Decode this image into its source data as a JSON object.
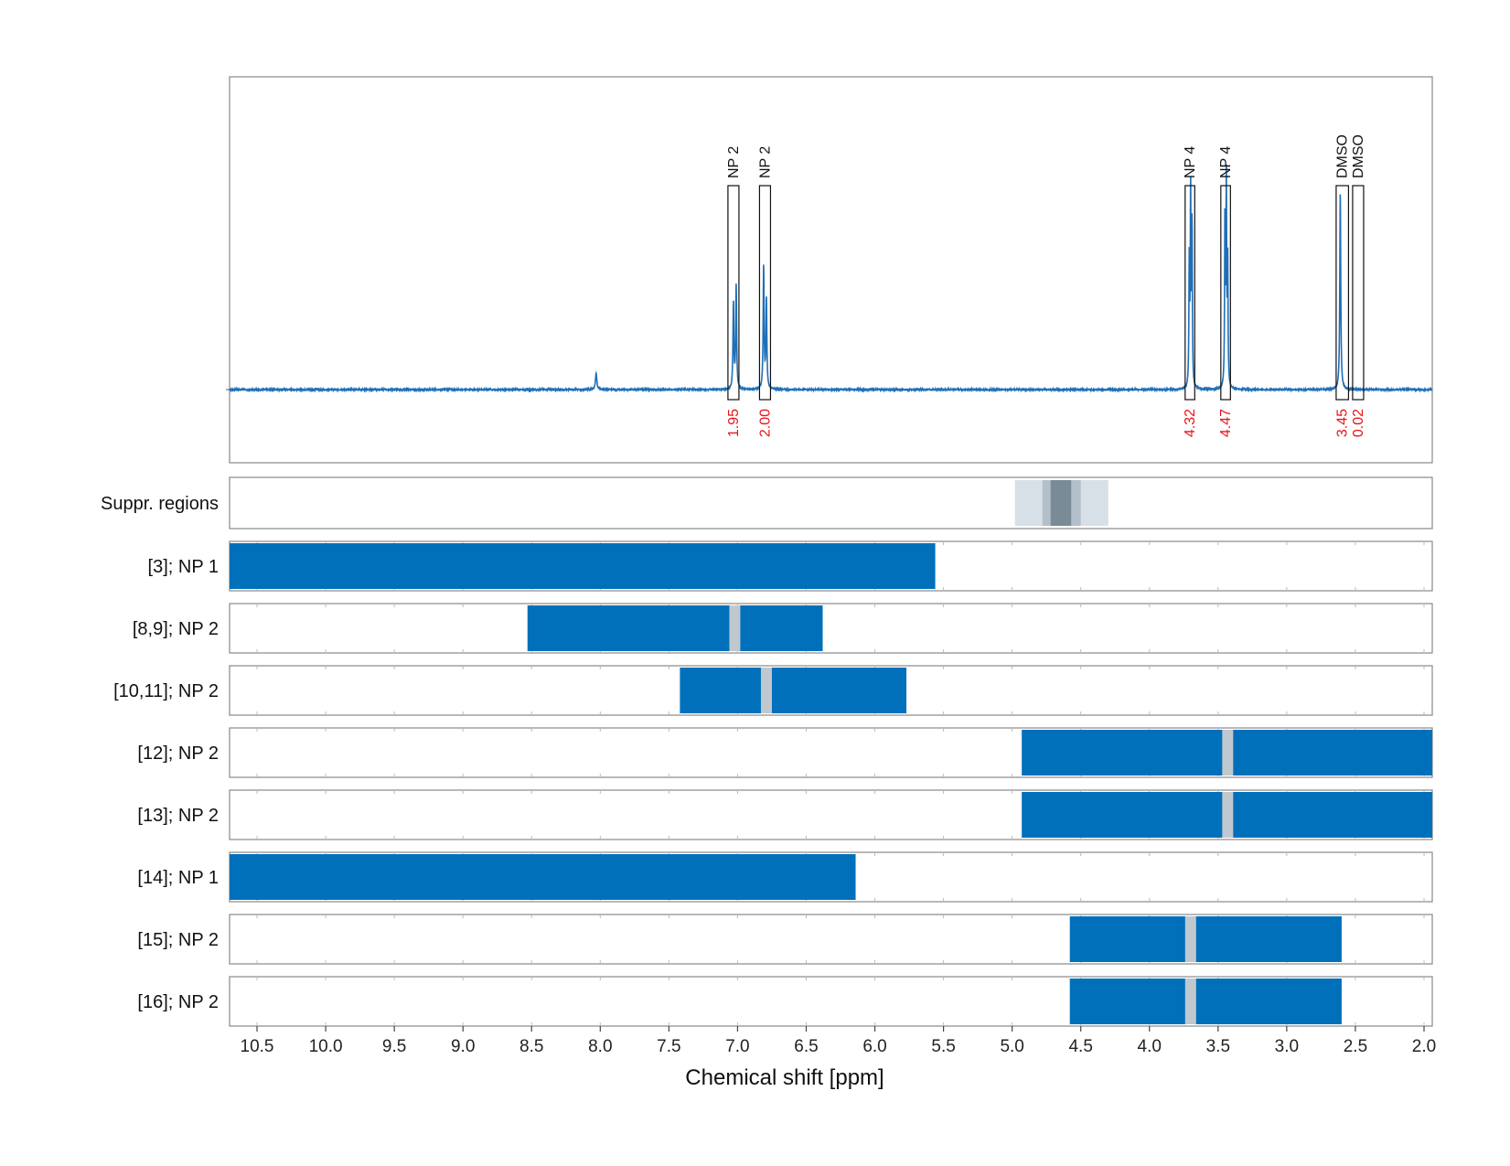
{
  "chart_data": {
    "type": "line",
    "xlabel": "Chemical shift [ppm]",
    "ylabel": "",
    "title": "",
    "xlim": [
      10.7,
      1.94
    ],
    "x_reversed": true,
    "grid": true,
    "x_ticks": [
      10.5,
      10.0,
      9.5,
      9.0,
      8.5,
      8.0,
      7.5,
      7.0,
      6.5,
      6.0,
      5.5,
      5.0,
      4.5,
      4.0,
      3.5,
      3.0,
      2.5,
      2.0
    ],
    "x_tick_labels": [
      "10.5",
      "10.0",
      "9.5",
      "9.0",
      "8.5",
      "8.0",
      "7.5",
      "7.0",
      "6.5",
      "6.0",
      "5.5",
      "5.0",
      "4.5",
      "4.0",
      "3.5",
      "3.0",
      "2.5",
      "2.0"
    ],
    "line_color": "#1f6fb8",
    "spectrum_peaks": [
      {
        "x": 8.03,
        "height": 0.08,
        "width": 0.006
      },
      {
        "x": 7.03,
        "height": 0.42,
        "width": 0.004
      },
      {
        "x": 7.01,
        "height": 0.5,
        "width": 0.004
      },
      {
        "x": 6.81,
        "height": 0.6,
        "width": 0.004
      },
      {
        "x": 6.79,
        "height": 0.44,
        "width": 0.004
      },
      {
        "x": 3.71,
        "height": 0.6,
        "width": 0.003
      },
      {
        "x": 3.7,
        "height": 0.95,
        "width": 0.003
      },
      {
        "x": 3.69,
        "height": 0.78,
        "width": 0.003
      },
      {
        "x": 3.45,
        "height": 0.82,
        "width": 0.003
      },
      {
        "x": 3.44,
        "height": 0.98,
        "width": 0.003
      },
      {
        "x": 3.43,
        "height": 0.62,
        "width": 0.003
      },
      {
        "x": 2.61,
        "height": 0.97,
        "width": 0.004
      }
    ],
    "annotations": [
      {
        "label": "NP 2",
        "integral": "1.95",
        "x_from": 7.07,
        "x_to": 6.99
      },
      {
        "label": "NP 2",
        "integral": "2.00",
        "x_from": 6.84,
        "x_to": 6.76
      },
      {
        "label": "NP 4",
        "integral": "4.32",
        "x_from": 3.74,
        "x_to": 3.67
      },
      {
        "label": "NP 4",
        "integral": "4.47",
        "x_from": 3.48,
        "x_to": 3.41
      },
      {
        "label": "DMSO",
        "integral": "3.45",
        "x_from": 2.64,
        "x_to": 2.55
      },
      {
        "label": "DMSO",
        "integral": "0.02",
        "x_from": 2.52,
        "x_to": 2.44
      }
    ],
    "suppression_region": {
      "label": "Suppr. regions",
      "bands": [
        {
          "from": 4.98,
          "to": 4.3,
          "color": "#d8e0e7"
        },
        {
          "from": 4.78,
          "to": 4.5,
          "color": "#b3c0cb"
        },
        {
          "from": 4.72,
          "to": 4.57,
          "color": "#7a8b98"
        }
      ]
    },
    "row_bar_color": "#0070bb",
    "row_marker_color": "#c0c8cf",
    "rows": [
      {
        "label": "[3]; NP 1",
        "from": 10.7,
        "to": 5.56,
        "marker": null
      },
      {
        "label": "[8,9]; NP 2",
        "from": 8.53,
        "to": 6.38,
        "marker": 7.02
      },
      {
        "label": "[10,11]; NP 2",
        "from": 7.42,
        "to": 5.77,
        "marker": 6.79
      },
      {
        "label": "[12]; NP 2",
        "from": 4.93,
        "to": 1.94,
        "marker": 3.43
      },
      {
        "label": "[13]; NP 2",
        "from": 4.93,
        "to": 1.94,
        "marker": 3.43
      },
      {
        "label": "[14]; NP 1",
        "from": 10.7,
        "to": 6.14,
        "marker": null
      },
      {
        "label": "[15]; NP 2",
        "from": 4.58,
        "to": 2.6,
        "marker": 3.7
      },
      {
        "label": "[16]; NP 2",
        "from": 4.58,
        "to": 2.6,
        "marker": 3.7
      }
    ]
  }
}
